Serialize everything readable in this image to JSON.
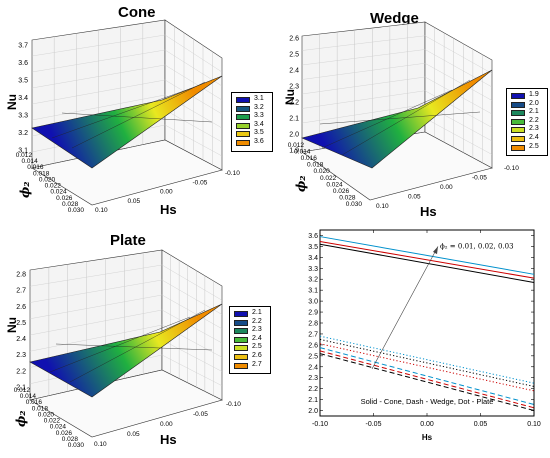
{
  "figure": {
    "note": "Solid - Cone, Dash - Wedge, Dot - Plate",
    "annotation": "ϕ₂ = 0.01, 0.02, 0.03"
  },
  "panels": {
    "cone": {
      "title": "Cone",
      "zlabel": "Nu",
      "ylabel": "ϕ₂",
      "xlabel": "Hs",
      "zticks": [
        "3.7",
        "3.6",
        "3.5",
        "3.4",
        "3.3",
        "3.2",
        "3.1"
      ],
      "phiticks": [
        "0.012",
        "0.014",
        "0.016",
        "0.018",
        "0.020",
        "0.022",
        "0.024",
        "0.026",
        "0.028",
        "0.030"
      ],
      "hsticks": [
        "0.10",
        "0.05",
        "0.00",
        "-0.05",
        "-0.10"
      ],
      "legend": [
        "3.1",
        "3.2",
        "3.3",
        "3.4",
        "3.5",
        "3.6"
      ]
    },
    "wedge": {
      "title": "Wedge",
      "zlabel": "Nu",
      "ylabel": "ϕ₂",
      "xlabel": "Hs",
      "zticks": [
        "2.6",
        "2.5",
        "2.4",
        "2.3",
        "2.2",
        "2.1",
        "2.0",
        "1.9"
      ],
      "phiticks": [
        "0.012",
        "0.014",
        "0.016",
        "0.018",
        "0.020",
        "0.022",
        "0.024",
        "0.026",
        "0.028",
        "0.030"
      ],
      "hsticks": [
        "0.10",
        "0.05",
        "0.00",
        "-0.05",
        "-0.10"
      ],
      "legend": [
        "1.9",
        "2.0",
        "2.1",
        "2.2",
        "2.3",
        "2.4",
        "2.5"
      ]
    },
    "plate": {
      "title": "Plate",
      "zlabel": "Nu",
      "ylabel": "ϕ₂",
      "xlabel": "Hs",
      "zticks": [
        "2.8",
        "2.7",
        "2.6",
        "2.5",
        "2.4",
        "2.3",
        "2.2",
        "2.1"
      ],
      "phiticks": [
        "0.012",
        "0.014",
        "0.016",
        "0.018",
        "0.020",
        "0.022",
        "0.024",
        "0.026",
        "0.028",
        "0.030"
      ],
      "hsticks": [
        "0.10",
        "0.05",
        "0.00",
        "-0.05",
        "-0.10"
      ],
      "legend": [
        "2.1",
        "2.2",
        "2.3",
        "2.4",
        "2.5",
        "2.6",
        "2.7"
      ]
    }
  },
  "colors": {
    "surface_low": "#1010b0",
    "surface_mid": "#20c020",
    "surface_mid2": "#e8e820",
    "surface_high": "#f09000",
    "phi_0.01": "#000000",
    "phi_0.02": "#cc0000",
    "phi_0.03": "#0090cc"
  },
  "chart_data": [
    {
      "type": "surface3d",
      "title": "Cone",
      "xlabel": "Hs",
      "ylabel": "ϕ₂",
      "zlabel": "Nu",
      "xlim": [
        -0.1,
        0.1
      ],
      "ylim": [
        0.012,
        0.03
      ],
      "zlim": [
        3.1,
        3.7
      ],
      "corners": [
        {
          "Hs": 0.1,
          "phi2": 0.012,
          "Nu": 3.2
        },
        {
          "Hs": 0.1,
          "phi2": 0.03,
          "Nu": 3.2
        },
        {
          "Hs": -0.1,
          "phi2": 0.012,
          "Nu": 3.59
        },
        {
          "Hs": -0.1,
          "phi2": 0.03,
          "Nu": 3.59
        }
      ],
      "legend": [
        "3.1",
        "3.2",
        "3.3",
        "3.4",
        "3.5",
        "3.6"
      ]
    },
    {
      "type": "surface3d",
      "title": "Wedge",
      "xlabel": "Hs",
      "ylabel": "ϕ₂",
      "zlabel": "Nu",
      "xlim": [
        -0.1,
        0.1
      ],
      "ylim": [
        0.012,
        0.03
      ],
      "zlim": [
        1.9,
        2.6
      ],
      "corners": [
        {
          "Hs": 0.1,
          "phi2": 0.012,
          "Nu": 2.01
        },
        {
          "Hs": 0.1,
          "phi2": 0.03,
          "Nu": 2.01
        },
        {
          "Hs": -0.1,
          "phi2": 0.012,
          "Nu": 2.53
        },
        {
          "Hs": -0.1,
          "phi2": 0.03,
          "Nu": 2.53
        }
      ],
      "legend": [
        "1.9",
        "2.0",
        "2.1",
        "2.2",
        "2.3",
        "2.4",
        "2.5"
      ]
    },
    {
      "type": "surface3d",
      "title": "Plate",
      "xlabel": "Hs",
      "ylabel": "ϕ₂",
      "zlabel": "Nu",
      "xlim": [
        -0.1,
        0.1
      ],
      "ylim": [
        0.012,
        0.03
      ],
      "zlim": [
        2.1,
        2.8
      ],
      "corners": [
        {
          "Hs": 0.1,
          "phi2": 0.012,
          "Nu": 2.22
        },
        {
          "Hs": 0.1,
          "phi2": 0.03,
          "Nu": 2.22
        },
        {
          "Hs": -0.1,
          "phi2": 0.012,
          "Nu": 2.68
        },
        {
          "Hs": -0.1,
          "phi2": 0.03,
          "Nu": 2.68
        }
      ],
      "legend": [
        "2.1",
        "2.2",
        "2.3",
        "2.4",
        "2.5",
        "2.6",
        "2.7"
      ]
    },
    {
      "type": "line",
      "title": "",
      "xlabel": "Hs",
      "ylabel": "",
      "xlim": [
        -0.1,
        0.1
      ],
      "ylim": [
        1.95,
        3.65
      ],
      "xticks": [
        "-0.10",
        "-0.05",
        "0.00",
        "0.05",
        "0.10"
      ],
      "yticks": [
        "2.0",
        "2.1",
        "2.2",
        "2.3",
        "2.4",
        "2.5",
        "2.6",
        "2.7",
        "2.8",
        "2.9",
        "3.0",
        "3.1",
        "3.2",
        "3.3",
        "3.4",
        "3.5",
        "3.6"
      ],
      "grid": false,
      "series": [
        {
          "geometry": "Cone",
          "phi2": 0.01,
          "style": "solid",
          "color": "#000000",
          "x": [
            -0.1,
            0.1
          ],
          "y": [
            3.52,
            3.17
          ]
        },
        {
          "geometry": "Cone",
          "phi2": 0.02,
          "style": "solid",
          "color": "#cc0000",
          "x": [
            -0.1,
            0.1
          ],
          "y": [
            3.545,
            3.21
          ]
        },
        {
          "geometry": "Cone",
          "phi2": 0.03,
          "style": "solid",
          "color": "#0090cc",
          "x": [
            -0.1,
            0.1
          ],
          "y": [
            3.59,
            3.245
          ]
        },
        {
          "geometry": "Wedge",
          "phi2": 0.01,
          "style": "dash",
          "color": "#000000",
          "x": [
            -0.1,
            0.1
          ],
          "y": [
            2.52,
            2.0
          ]
        },
        {
          "geometry": "Wedge",
          "phi2": 0.02,
          "style": "dash",
          "color": "#cc0000",
          "x": [
            -0.1,
            0.1
          ],
          "y": [
            2.545,
            2.025
          ]
        },
        {
          "geometry": "Wedge",
          "phi2": 0.03,
          "style": "dash",
          "color": "#0090cc",
          "x": [
            -0.1,
            0.1
          ],
          "y": [
            2.575,
            2.055
          ]
        },
        {
          "geometry": "Plate",
          "phi2": 0.01,
          "style": "dot",
          "color": "#000000",
          "x": [
            -0.1,
            0.1
          ],
          "y": [
            2.65,
            2.22
          ]
        },
        {
          "geometry": "Plate",
          "phi2": 0.02,
          "style": "dot",
          "color": "#cc0000",
          "x": [
            -0.1,
            0.1
          ],
          "y": [
            2.61,
            2.18
          ]
        },
        {
          "geometry": "Plate",
          "phi2": 0.03,
          "style": "dot",
          "color": "#0090cc",
          "x": [
            -0.1,
            0.1
          ],
          "y": [
            2.68,
            2.25
          ]
        }
      ]
    }
  ]
}
